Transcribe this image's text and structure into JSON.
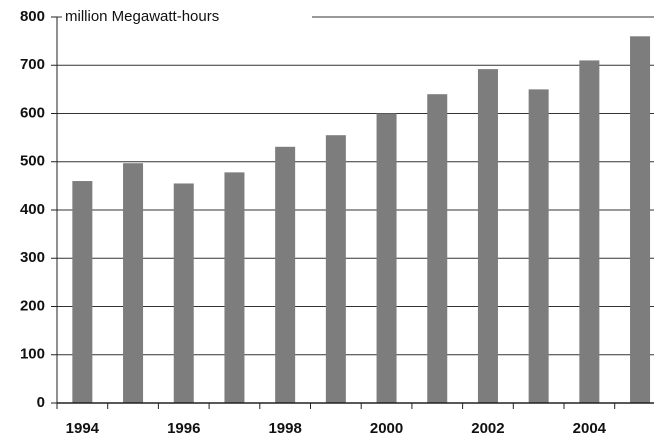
{
  "chart_data": {
    "type": "bar",
    "y_axis_label": "million Megawatt-hours",
    "categories": [
      "1994",
      null,
      "1996",
      null,
      "1998",
      null,
      "2000",
      null,
      "2002",
      null,
      "2004",
      null
    ],
    "values": [
      460,
      497,
      455,
      478,
      531,
      555,
      600,
      640,
      692,
      650,
      710,
      760
    ],
    "color": "#7d7d7d",
    "ylim": [
      0,
      800
    ],
    "yticks": [
      0,
      100,
      200,
      300,
      400,
      500,
      600,
      700,
      800
    ],
    "grid": true
  }
}
